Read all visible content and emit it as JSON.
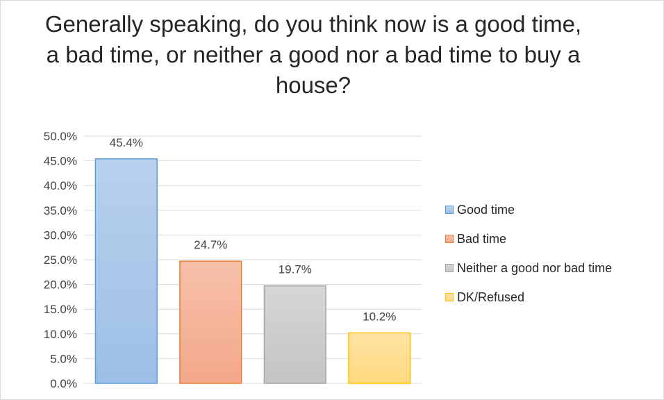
{
  "chart_data": {
    "type": "bar",
    "title": "Generally speaking, do you think now is a good time, a bad time, or neither a good nor a bad time to buy a house?",
    "categories": [
      "Good time",
      "Bad time",
      "Neither a good nor bad time",
      "DK/Refused"
    ],
    "values": [
      45.4,
      24.7,
      19.7,
      10.2
    ],
    "data_labels": [
      "45.4%",
      "24.7%",
      "19.7%",
      "10.2%"
    ],
    "y_ticks": [
      "0.0%",
      "5.0%",
      "10.0%",
      "15.0%",
      "20.0%",
      "25.0%",
      "30.0%",
      "35.0%",
      "40.0%",
      "45.0%",
      "50.0%"
    ],
    "ylim": [
      0,
      50
    ],
    "grid": true,
    "legend_position": "right",
    "colors": [
      "#9dbfe6",
      "#f3a88a",
      "#c4c4c4",
      "#ffd97f"
    ],
    "border_colors": [
      "#5b9bd5",
      "#ed7d31",
      "#a5a5a5",
      "#ffc000"
    ]
  }
}
